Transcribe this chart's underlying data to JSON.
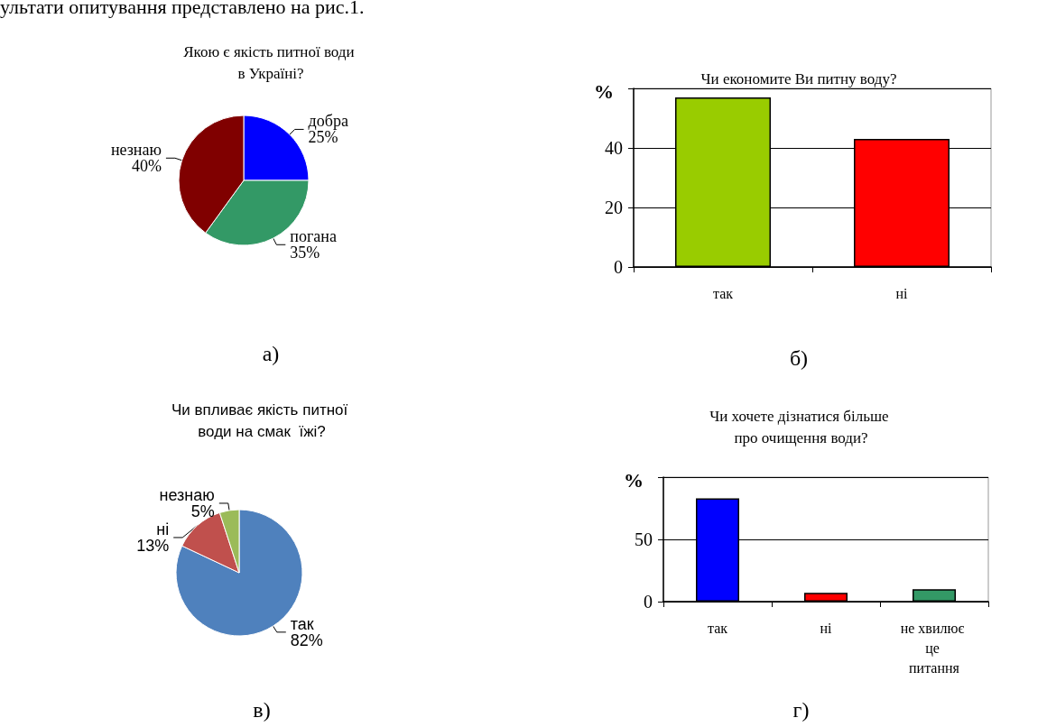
{
  "chart_data": [
    {
      "type": "pie",
      "title": "Якою є якість питної води в Україні?",
      "categories": [
        "добра",
        "погана",
        "незнаю"
      ],
      "values": [
        25,
        35,
        40
      ],
      "value_labels": [
        "25%",
        "35%",
        "40%"
      ],
      "colors": [
        "#0000ff",
        "#339966",
        "#800000"
      ],
      "annotations": [
        "ультати опитування представлено на рис.1.",
        "а)"
      ]
    },
    {
      "type": "bar",
      "title": "Чи економите Ви питну воду?",
      "ylabel": "%",
      "categories": [
        "так",
        "ні"
      ],
      "values": [
        57,
        43
      ],
      "colors": [
        "#99cc00",
        "#ff0000"
      ],
      "ylim": [
        0,
        60
      ],
      "yticks": [
        0,
        20,
        40,
        {
          "value": 60,
          "label": null
        }
      ],
      "grid": "y",
      "annotations": [
        "б)"
      ]
    },
    {
      "type": "pie",
      "title": "Чи впливає якість питної води на смак  їжі?",
      "categories": [
        "так",
        "ні",
        "незнаю"
      ],
      "values": [
        82,
        13,
        5
      ],
      "value_labels": [
        "82%",
        "13%",
        "5%"
      ],
      "colors": [
        "#4f81bd",
        "#c0504d",
        "#9bbb59"
      ],
      "annotations": [
        "в)"
      ]
    },
    {
      "type": "bar",
      "title": "Чи хочете дізнатися більше про очищення води?",
      "ylabel": "%",
      "categories": [
        "так",
        "ні",
        "не хвилює це питання"
      ],
      "values": [
        83,
        7,
        10
      ],
      "colors": [
        "#0000ff",
        "#ff0000",
        "#339966"
      ],
      "ylim": [
        0,
        100
      ],
      "yticks": [
        0,
        50,
        {
          "value": 100,
          "label": null
        }
      ],
      "grid": "y",
      "annotations": [
        "г)"
      ]
    }
  ]
}
